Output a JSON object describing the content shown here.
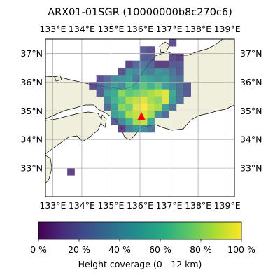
{
  "chart_data": {
    "type": "heatmap",
    "title": "ARX01-01SGR (10000000b8c270c6)",
    "xlim": [
      132.75,
      139.25
    ],
    "ylim": [
      32.0,
      37.5
    ],
    "grid": true,
    "x_ticks": [
      133,
      134,
      135,
      136,
      137,
      138,
      139
    ],
    "x_tick_labels": [
      "133°E",
      "134°E",
      "135°E",
      "136°E",
      "137°E",
      "138°E",
      "139°E"
    ],
    "y_ticks": [
      33,
      34,
      35,
      36,
      37
    ],
    "y_tick_labels": [
      "33°N",
      "34°N",
      "35°N",
      "36°N",
      "37°N"
    ],
    "cell_size_deg": 0.25,
    "station": {
      "lon": 136.05,
      "lat": 34.8,
      "marker": "red-triangle"
    },
    "colormap": "viridis",
    "colorbar": {
      "label": "Height coverage (0 - 12 km)",
      "ticks": [
        0,
        20,
        40,
        60,
        80,
        100
      ],
      "tick_labels": [
        "0 %",
        "20 %",
        "40 %",
        "60 %",
        "80 %",
        "100 %"
      ],
      "range": [
        0,
        100
      ]
    },
    "colors": {
      "land": "#efefdb",
      "sea": "#ffffff",
      "grid": "#b0b0b0",
      "station": "#ff0000"
    },
    "cells": [
      [
        136.0,
        37.0,
        20
      ],
      [
        136.25,
        37.0,
        15
      ],
      [
        137.0,
        37.25,
        15
      ],
      [
        136.0,
        36.75,
        20
      ],
      [
        136.25,
        36.75,
        20
      ],
      [
        137.0,
        36.75,
        15
      ],
      [
        137.25,
        36.75,
        10
      ],
      [
        135.5,
        36.5,
        10
      ],
      [
        135.75,
        36.5,
        25
      ],
      [
        136.0,
        36.5,
        30
      ],
      [
        136.25,
        36.5,
        25
      ],
      [
        136.5,
        36.5,
        10
      ],
      [
        136.75,
        36.5,
        10
      ],
      [
        137.0,
        36.5,
        20
      ],
      [
        137.25,
        36.5,
        20
      ],
      [
        135.25,
        36.25,
        15
      ],
      [
        135.5,
        36.25,
        45
      ],
      [
        135.75,
        36.25,
        40
      ],
      [
        136.0,
        36.25,
        40
      ],
      [
        136.25,
        36.25,
        35
      ],
      [
        136.5,
        36.25,
        45
      ],
      [
        136.75,
        36.25,
        40
      ],
      [
        137.0,
        36.25,
        30
      ],
      [
        137.25,
        36.25,
        20
      ],
      [
        134.5,
        36.0,
        15
      ],
      [
        134.75,
        36.0,
        25
      ],
      [
        135.0,
        36.0,
        40
      ],
      [
        135.25,
        36.0,
        45
      ],
      [
        135.5,
        36.0,
        50
      ],
      [
        135.75,
        36.0,
        30
      ],
      [
        136.0,
        36.0,
        55
      ],
      [
        136.25,
        36.0,
        50
      ],
      [
        136.5,
        36.0,
        45
      ],
      [
        136.75,
        36.0,
        50
      ],
      [
        137.0,
        36.0,
        35
      ],
      [
        137.25,
        36.0,
        30
      ],
      [
        134.25,
        35.75,
        15
      ],
      [
        134.5,
        35.75,
        25
      ],
      [
        134.75,
        35.75,
        35
      ],
      [
        135.0,
        35.75,
        50
      ],
      [
        135.25,
        35.75,
        40
      ],
      [
        135.5,
        35.75,
        65
      ],
      [
        135.75,
        35.75,
        55
      ],
      [
        136.0,
        35.75,
        70
      ],
      [
        136.25,
        35.75,
        60
      ],
      [
        136.5,
        35.75,
        70
      ],
      [
        136.75,
        35.75,
        50
      ],
      [
        137.0,
        35.75,
        40
      ],
      [
        137.25,
        35.75,
        30
      ],
      [
        137.5,
        35.75,
        20
      ],
      [
        134.5,
        35.5,
        20
      ],
      [
        134.75,
        35.5,
        50
      ],
      [
        135.0,
        35.5,
        55
      ],
      [
        135.25,
        35.5,
        80
      ],
      [
        135.5,
        35.5,
        70
      ],
      [
        135.75,
        35.5,
        75
      ],
      [
        136.0,
        35.5,
        80
      ],
      [
        136.25,
        35.5,
        85
      ],
      [
        136.5,
        35.5,
        90
      ],
      [
        136.75,
        35.5,
        95
      ],
      [
        137.0,
        35.5,
        55
      ],
      [
        137.25,
        35.5,
        30
      ],
      [
        137.5,
        35.5,
        20
      ],
      [
        134.75,
        35.25,
        40
      ],
      [
        135.0,
        35.25,
        60
      ],
      [
        135.25,
        35.25,
        70
      ],
      [
        135.5,
        35.25,
        85
      ],
      [
        135.75,
        35.25,
        90
      ],
      [
        136.0,
        35.25,
        95
      ],
      [
        136.25,
        35.25,
        85
      ],
      [
        136.5,
        35.25,
        80
      ],
      [
        136.75,
        35.25,
        95
      ],
      [
        137.0,
        35.25,
        50
      ],
      [
        137.25,
        35.25,
        30
      ],
      [
        134.75,
        35.0,
        25
      ],
      [
        135.0,
        35.0,
        50
      ],
      [
        135.25,
        35.0,
        80
      ],
      [
        135.5,
        35.0,
        75
      ],
      [
        135.75,
        35.0,
        95
      ],
      [
        136.0,
        35.0,
        100
      ],
      [
        136.25,
        35.0,
        90
      ],
      [
        136.5,
        35.0,
        85
      ],
      [
        136.75,
        35.0,
        50
      ],
      [
        137.0,
        35.0,
        30
      ],
      [
        135.0,
        34.75,
        50
      ],
      [
        135.25,
        34.75,
        60
      ],
      [
        135.5,
        34.75,
        85
      ],
      [
        135.75,
        34.75,
        90
      ],
      [
        136.0,
        34.75,
        95
      ],
      [
        136.25,
        34.75,
        85
      ],
      [
        136.5,
        34.75,
        45
      ],
      [
        136.75,
        34.75,
        25
      ],
      [
        135.0,
        34.5,
        20
      ],
      [
        135.25,
        34.5,
        40
      ],
      [
        135.5,
        34.5,
        60
      ],
      [
        135.75,
        34.5,
        85
      ],
      [
        136.0,
        34.5,
        90
      ],
      [
        136.25,
        34.5,
        55
      ],
      [
        135.25,
        34.25,
        10
      ],
      [
        135.5,
        34.25,
        35
      ],
      [
        135.75,
        34.25,
        45
      ],
      [
        136.0,
        34.25,
        40
      ],
      [
        136.25,
        34.25,
        30
      ],
      [
        133.5,
        32.75,
        10
      ]
    ]
  }
}
